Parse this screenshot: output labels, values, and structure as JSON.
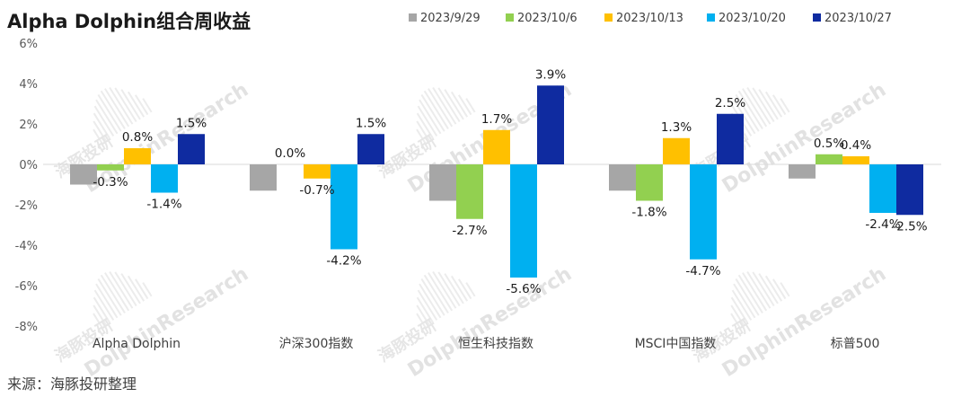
{
  "chart_data": {
    "type": "bar",
    "title": "Alpha Dolphin组合周收益",
    "categories": [
      "Alpha Dolphin",
      "沪深300指数",
      "恒生科技指数",
      "MSCI中国指数",
      "标普500"
    ],
    "series": [
      {
        "name": "2023/9/29",
        "color": "#a6a6a6",
        "values": [
          -1.0,
          -1.3,
          -1.8,
          -1.3,
          -0.7
        ],
        "labels": [
          "",
          "",
          "",
          "",
          ""
        ]
      },
      {
        "name": "2023/10/6",
        "color": "#92d050",
        "values": [
          -0.3,
          0.0,
          -2.7,
          -1.8,
          0.5
        ],
        "labels": [
          "-0.3%",
          "0.0%",
          "-2.7%",
          "-1.8%",
          "0.5%"
        ]
      },
      {
        "name": "2023/10/13",
        "color": "#ffc000",
        "values": [
          0.8,
          -0.7,
          1.7,
          1.3,
          0.4
        ],
        "labels": [
          "0.8%",
          "-0.7%",
          "1.7%",
          "1.3%",
          "0.4%"
        ]
      },
      {
        "name": "2023/10/20",
        "color": "#00b0f0",
        "values": [
          -1.4,
          -4.2,
          -5.6,
          -4.7,
          -2.4
        ],
        "labels": [
          "-1.4%",
          "-4.2%",
          "-5.6%",
          "-4.7%",
          "-2.4%"
        ]
      },
      {
        "name": "2023/10/27",
        "color": "#0f2ba0",
        "values": [
          1.5,
          1.5,
          3.9,
          2.5,
          -2.5
        ],
        "labels": [
          "1.5%",
          "1.5%",
          "3.9%",
          "2.5%",
          "-2.5%"
        ]
      }
    ],
    "ylim": [
      -8,
      6
    ],
    "yticks": [
      6,
      4,
      2,
      0,
      -2,
      -4,
      -6,
      -8
    ],
    "ytick_labels": [
      "6%",
      "4%",
      "2%",
      "0%",
      "-2%",
      "-4%",
      "-6%",
      "-8%"
    ],
    "xlabel": "",
    "ylabel": "",
    "legend_position": "top",
    "grid": false
  },
  "source_note": "来源：海豚投研整理",
  "watermark": {
    "en": "DolphinResearch",
    "cn": "海豚投研"
  }
}
